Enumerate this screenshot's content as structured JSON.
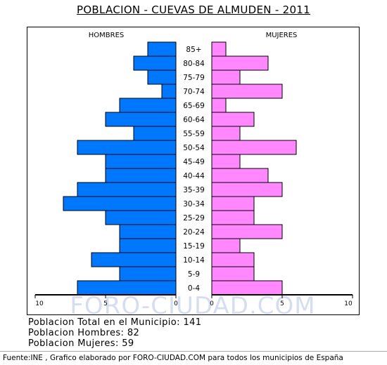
{
  "title": "POBLACION - CUEVAS DE ALMUDEN - 2011",
  "watermark": "FORO-CIUDAD.COM",
  "colors": {
    "men": "#0077ff",
    "women": "#ff88ff",
    "border": "#000000"
  },
  "chart_data": {
    "type": "bar",
    "orientation": "horizontal",
    "categories": [
      "85+",
      "80-84",
      "75-79",
      "70-74",
      "65-69",
      "60-64",
      "55-59",
      "50-54",
      "45-49",
      "40-44",
      "35-39",
      "30-34",
      "25-29",
      "20-24",
      "15-19",
      "10-14",
      "5-9",
      "0-4"
    ],
    "series": [
      {
        "name": "HOMBRES",
        "values": [
          2,
          3,
          2,
          1,
          4,
          5,
          3,
          7,
          5,
          5,
          7,
          8,
          5,
          4,
          4,
          6,
          4,
          7
        ]
      },
      {
        "name": "MUJERES",
        "values": [
          1,
          4,
          2,
          5,
          1,
          3,
          2,
          6,
          2,
          4,
          5,
          3,
          3,
          5,
          2,
          3,
          3,
          5
        ]
      }
    ],
    "xlim": [
      0,
      10
    ],
    "x_tick_labels": {
      "left": [
        "10",
        "5",
        "0"
      ],
      "right": [
        "0",
        "5",
        "10"
      ]
    }
  },
  "stats": {
    "total": "Poblacion Total en el Municipio: 141",
    "men": "Poblacion Hombres: 82",
    "women": "Poblacion Mujeres: 59"
  },
  "footer": "Fuente:INE , Grafico elaborado por FORO-CIUDAD.COM para todos los municipios de España"
}
